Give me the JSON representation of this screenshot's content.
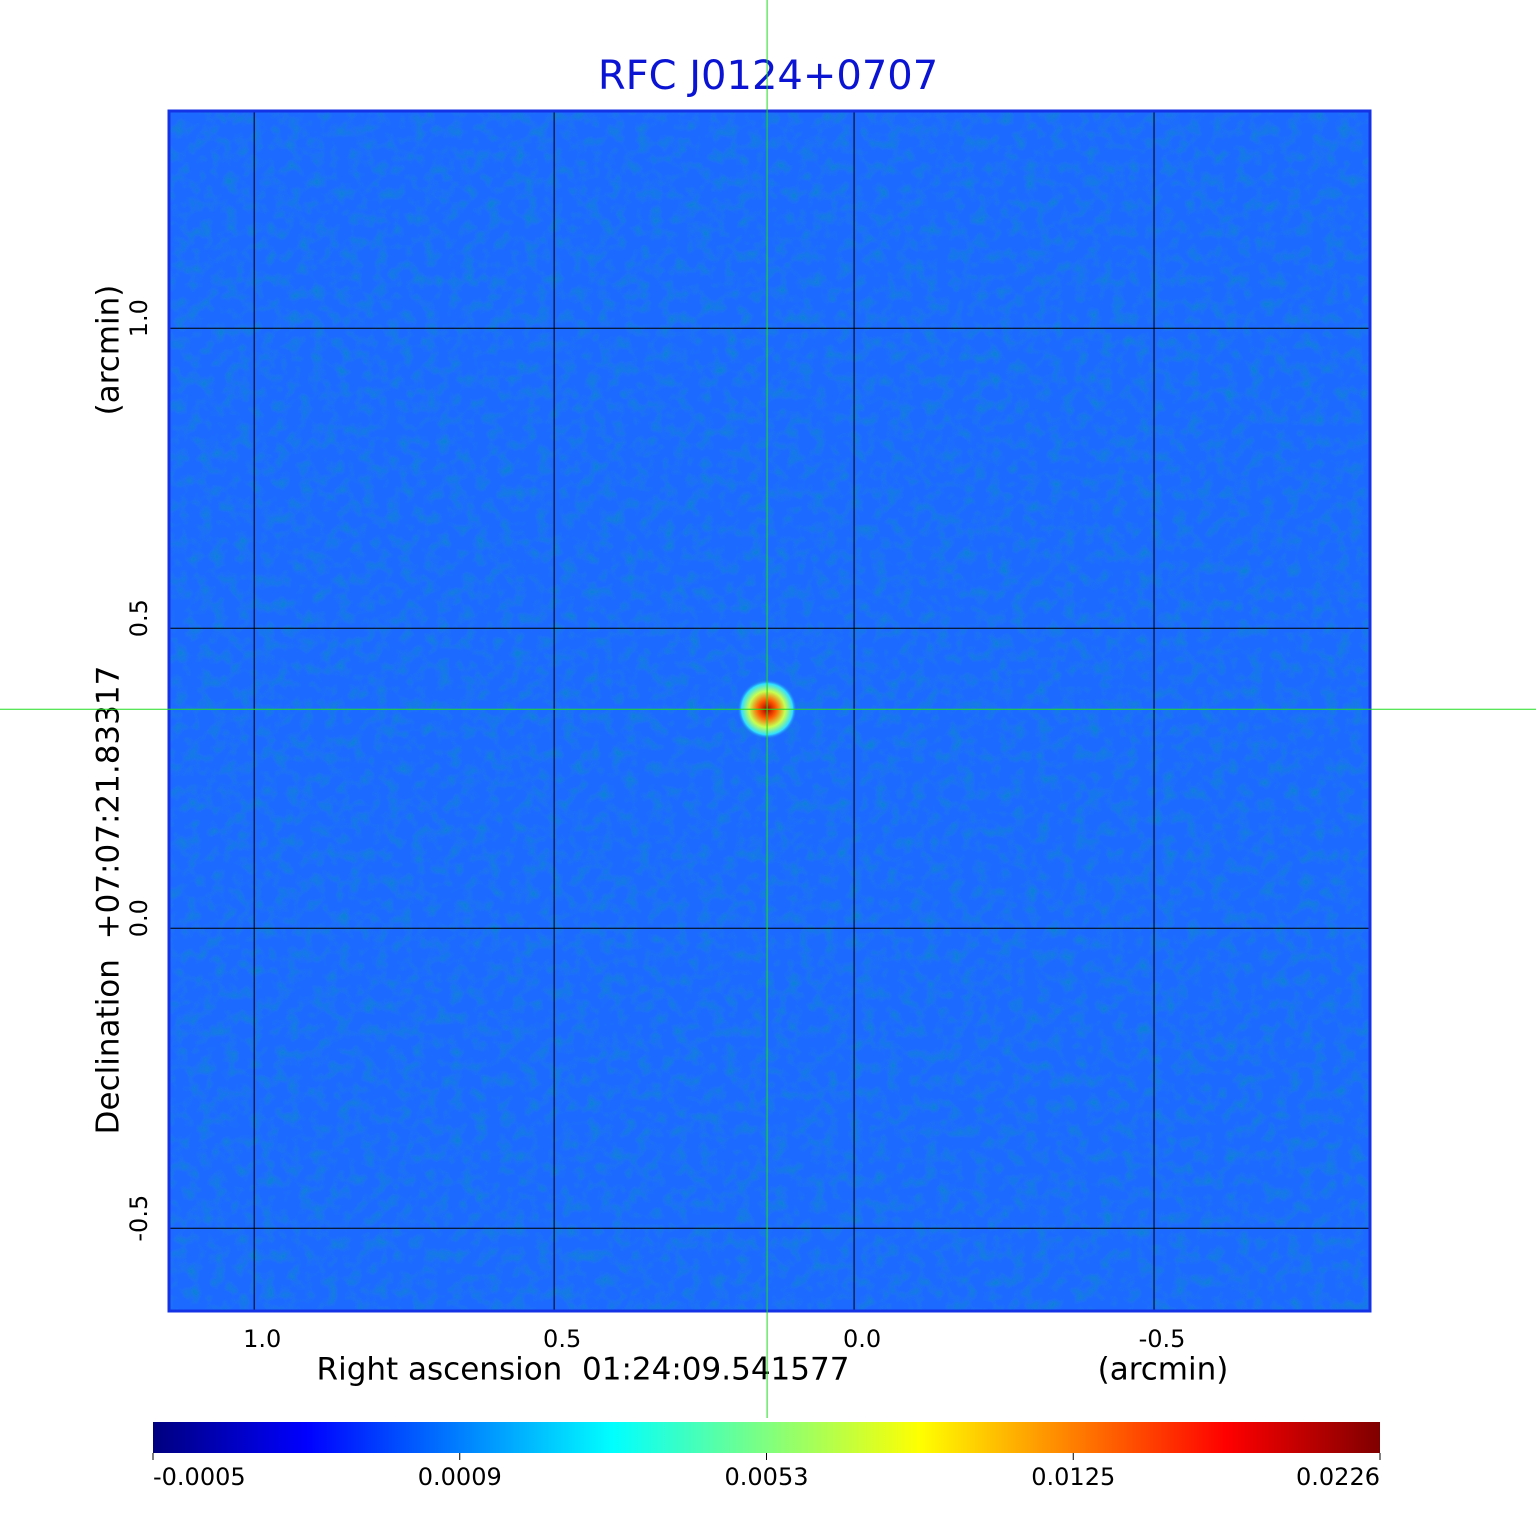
{
  "chart_data": {
    "type": "image",
    "title": "RFC J0124+0707",
    "x_label": "Right ascension  01:24:09.541577",
    "x_unit": "(arcmin)",
    "y_label": "Declination  +07:07:21.83317",
    "y_unit": "(arcmin)",
    "xlim": [
      1.142,
      -0.86
    ],
    "ylim": [
      -0.638,
      1.362
    ],
    "xticks": [
      {
        "value": 1,
        "label": "1.0"
      },
      0.5,
      {
        "value": 0,
        "label": "0.0"
      },
      -0.5
    ],
    "yticks": [
      -0.5,
      {
        "value": 0,
        "label": "0.0"
      },
      0.5,
      {
        "value": 1,
        "label": "1.0"
      }
    ],
    "grid": true,
    "crosshair": {
      "x": 0.145,
      "y": 0.365
    },
    "colorbar": {
      "ticks": [
        -0.0005,
        0.0009,
        0.0053,
        0.0125,
        0.0226
      ],
      "colors": [
        "#00007f",
        "#0000ff",
        "#007fff",
        "#00ffff",
        "#7fff7f",
        "#ffff00",
        "#ff7f00",
        "#ff0000",
        "#7f0000"
      ]
    }
  }
}
